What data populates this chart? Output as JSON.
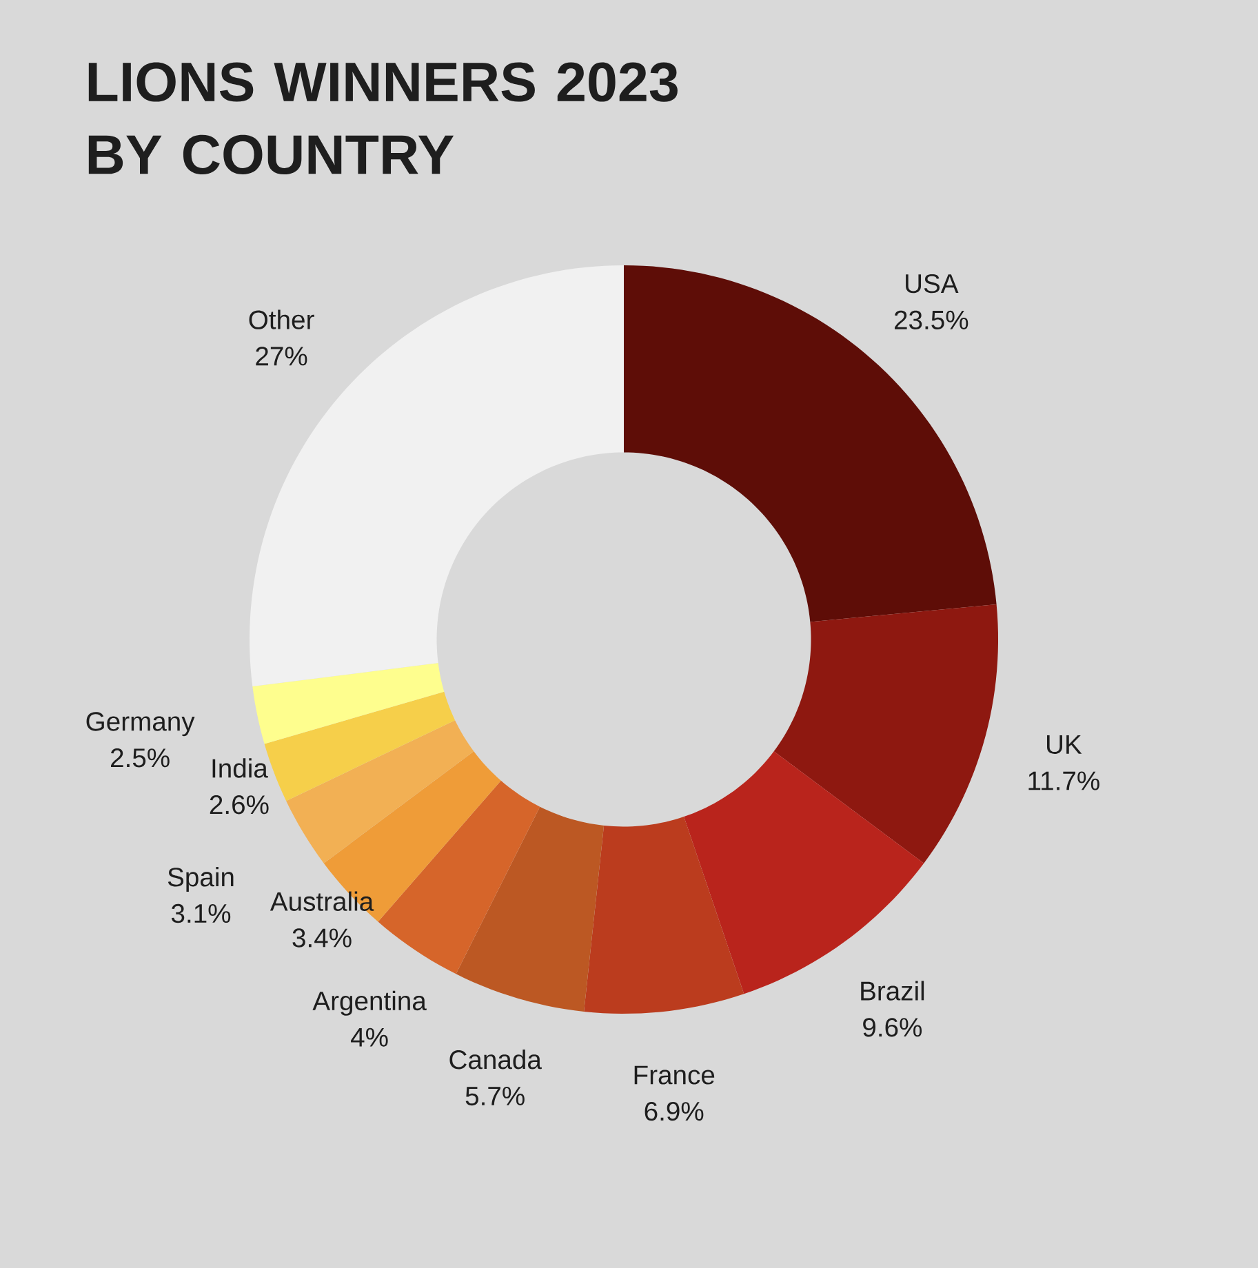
{
  "chart_data": {
    "type": "donut",
    "title": "LIONS WINNERS 2023 BY COUNTRY",
    "categories": [
      "USA",
      "UK",
      "Brazil",
      "France",
      "Canada",
      "Argentina",
      "Australia",
      "Spain",
      "India",
      "Germany",
      "Other"
    ],
    "values": [
      23.5,
      11.7,
      9.6,
      6.9,
      5.7,
      4,
      3.4,
      3.1,
      2.6,
      2.5,
      27
    ],
    "value_labels": [
      "23.5%",
      "11.7%",
      "9.6%",
      "6.9%",
      "5.7%",
      "4%",
      "3.4%",
      "3.1%",
      "2.6%",
      "2.5%",
      "27%"
    ],
    "colors": [
      "#5e0d07",
      "#8e1810",
      "#b9241c",
      "#bb3c1e",
      "#bc5823",
      "#d6652a",
      "#ef9c38",
      "#f2b054",
      "#f6cf4a",
      "#fefe8e",
      "#f1f1f1"
    ]
  }
}
